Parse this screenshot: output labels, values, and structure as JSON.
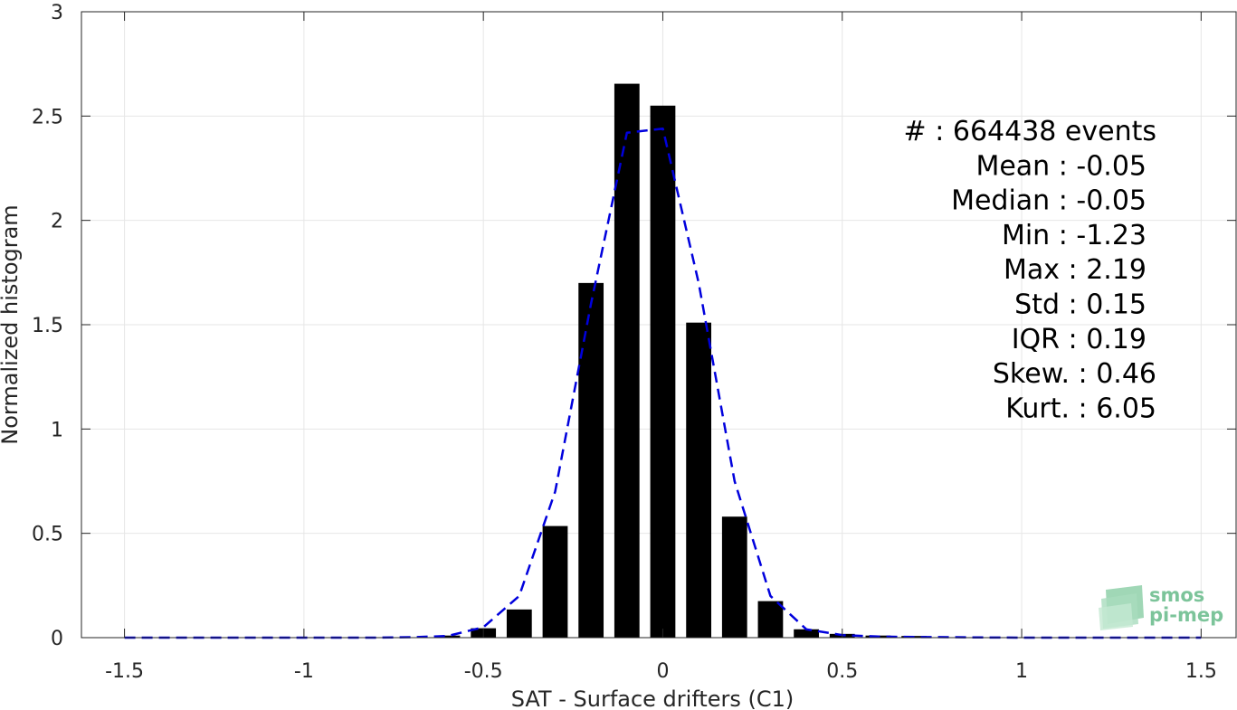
{
  "chart_data": {
    "type": "bar",
    "xlabel": "SAT - Surface drifters (C1)",
    "ylabel": "Normalized histogram",
    "xlim": [
      -1.62,
      1.6
    ],
    "ylim": [
      0,
      3
    ],
    "grid": true,
    "x_ticks": [
      -1.5,
      -1,
      -0.5,
      0,
      0.5,
      1,
      1.5
    ],
    "x_tick_labels": [
      "-1.5",
      "-1",
      "-0.5",
      "0",
      "0.5",
      "1",
      "1.5"
    ],
    "y_ticks": [
      0,
      0.5,
      1,
      1.5,
      2,
      2.5,
      3
    ],
    "y_tick_labels": [
      "0",
      "0.5",
      "1",
      "1.5",
      "2",
      "2.5",
      "3"
    ],
    "bar_width": 0.07,
    "bars": {
      "x": [
        -0.6,
        -0.5,
        -0.4,
        -0.3,
        -0.2,
        -0.1,
        0.0,
        0.1,
        0.2,
        0.3,
        0.4,
        0.5,
        0.6,
        0.7
      ],
      "values": [
        0.01,
        0.045,
        0.135,
        0.535,
        1.7,
        2.655,
        2.55,
        1.51,
        0.58,
        0.175,
        0.04,
        0.018,
        0.01,
        0.008
      ],
      "color": "#000000"
    },
    "fit_line": {
      "x": [
        -1.5,
        -1.4,
        -1.3,
        -1.2,
        -1.1,
        -1.0,
        -0.9,
        -0.8,
        -0.7,
        -0.6,
        -0.5,
        -0.4,
        -0.3,
        -0.2,
        -0.1,
        0.0,
        0.1,
        0.2,
        0.3,
        0.4,
        0.5,
        0.6,
        0.7,
        0.8,
        0.9,
        1.0,
        1.1,
        1.2,
        1.3,
        1.4,
        1.5
      ],
      "y": [
        0,
        0,
        0,
        0,
        0,
        0,
        0,
        0,
        0.002,
        0.008,
        0.05,
        0.2,
        0.7,
        1.6,
        2.42,
        2.44,
        1.7,
        0.75,
        0.2,
        0.04,
        0.012,
        0.005,
        0.003,
        0.002,
        0.001,
        0,
        0,
        0,
        0,
        0,
        0
      ],
      "color": "#0000dd",
      "style": "dashed"
    },
    "stats": [
      {
        "label": "#  : 664438 events"
      },
      {
        "label": "Mean : -0.05"
      },
      {
        "label": "Median : -0.05"
      },
      {
        "label": "Min : -1.23"
      },
      {
        "label": "Max : 2.19"
      },
      {
        "label": "Std : 0.15"
      },
      {
        "label": "IQR : 0.19"
      },
      {
        "label": "Skew. : 0.46"
      },
      {
        "label": "Kurt. : 6.05"
      }
    ]
  },
  "logo": {
    "line1": "smos",
    "line2": "pi-mep"
  },
  "colors": {
    "grid": "#e6e6e6",
    "axis": "#262626",
    "logo": "#7cc49a"
  }
}
